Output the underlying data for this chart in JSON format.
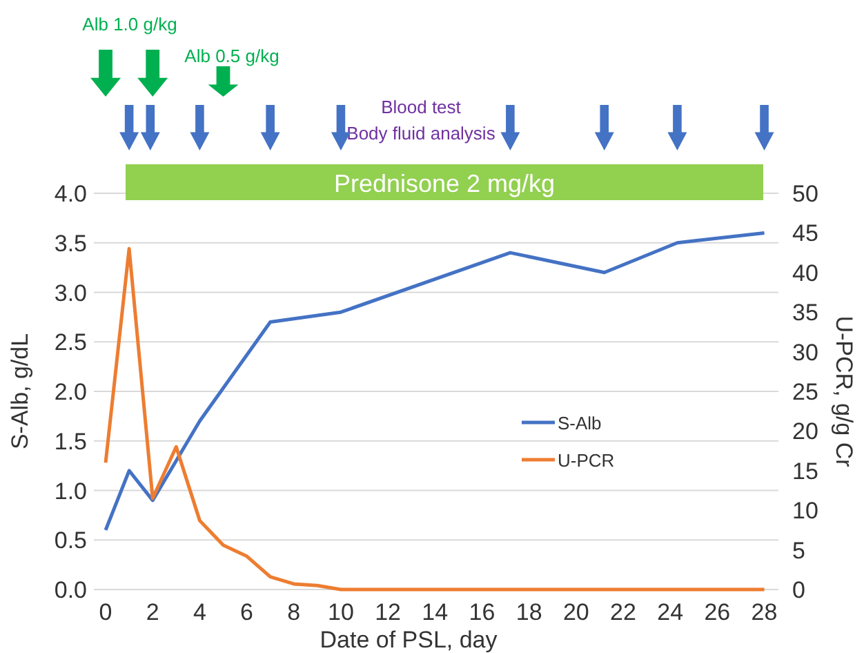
{
  "chart_data": {
    "type": "line",
    "xlabel": "Date of PSL, day",
    "ylabel": "S-Alb, g/dL",
    "y2label": "U-PCR, g/g Cr",
    "xlim": [
      -0.5,
      28.6
    ],
    "xticks": [
      0,
      2,
      4,
      6,
      8,
      10,
      12,
      14,
      16,
      18,
      20,
      22,
      24,
      26,
      28
    ],
    "ylim": [
      0,
      4
    ],
    "yticks": [
      {
        "value": 0,
        "label": "0.0"
      },
      {
        "value": 0.5,
        "label": "0.5"
      },
      {
        "value": 1,
        "label": "1.0"
      },
      {
        "value": 1.5,
        "label": "1.5"
      },
      {
        "value": 2,
        "label": "2.0"
      },
      {
        "value": 2.5,
        "label": "2.5"
      },
      {
        "value": 3,
        "label": "3.0"
      },
      {
        "value": 3.5,
        "label": "3.5"
      },
      {
        "value": 4,
        "label": "4.0"
      }
    ],
    "y2lim": [
      0,
      50
    ],
    "y2ticks": [
      0,
      5,
      10,
      15,
      20,
      25,
      30,
      35,
      40,
      45,
      50
    ],
    "grid": "y",
    "legend": "right",
    "marker": "none",
    "line_style": "solid",
    "series": [
      {
        "name": "S-Alb",
        "color": "#4472c4",
        "x": [
          0,
          1,
          2,
          4,
          7,
          10,
          17.2,
          21.2,
          24.3,
          28
        ],
        "values": [
          0.6,
          1.2,
          0.9,
          1.7,
          2.7,
          2.8,
          3.4,
          3.2,
          3.5,
          3.6
        ]
      },
      {
        "name": "U-PCR",
        "color": "#ed7d31",
        "axis": "y2",
        "x": [
          0,
          1,
          2,
          3,
          4,
          5,
          6,
          7,
          8,
          9,
          10,
          28
        ],
        "values": [
          16,
          43,
          11.5,
          18,
          8.7,
          5.6,
          4.2,
          1.6,
          0.7,
          0.5,
          0,
          0
        ]
      }
    ],
    "annotations": [
      "Alb 1.0 g/kg",
      "Alb 0.5 g/kg",
      "Blood test",
      "Body fluid analysis",
      "Prednisone 2 mg/kg"
    ]
  }
}
